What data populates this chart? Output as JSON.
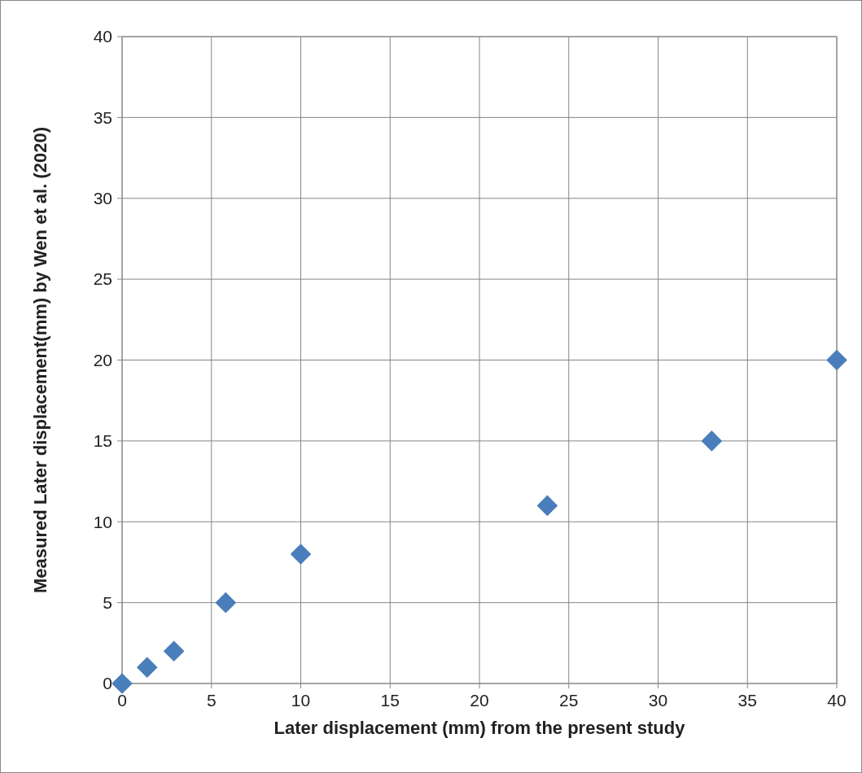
{
  "chart_data": {
    "type": "scatter",
    "xlabel": "Later displacement (mm) from the present study",
    "ylabel": "Measured Later displacement(mm) by Wen et al. (2020)",
    "x": [
      0,
      1.4,
      2.9,
      5.8,
      10,
      23.8,
      33,
      40
    ],
    "series": [
      {
        "color": "#4a7ebb",
        "values": [
          0,
          1,
          2,
          5,
          8,
          11,
          15,
          20
        ]
      }
    ],
    "xlim": [
      0,
      40
    ],
    "xticks": [
      0,
      5,
      10,
      15,
      20,
      25,
      30,
      35,
      40
    ],
    "ylim": [
      0,
      40
    ],
    "yticks": [
      0,
      5,
      10,
      15,
      20,
      25,
      30,
      35,
      40
    ],
    "grid": true,
    "marker": "diamond"
  }
}
